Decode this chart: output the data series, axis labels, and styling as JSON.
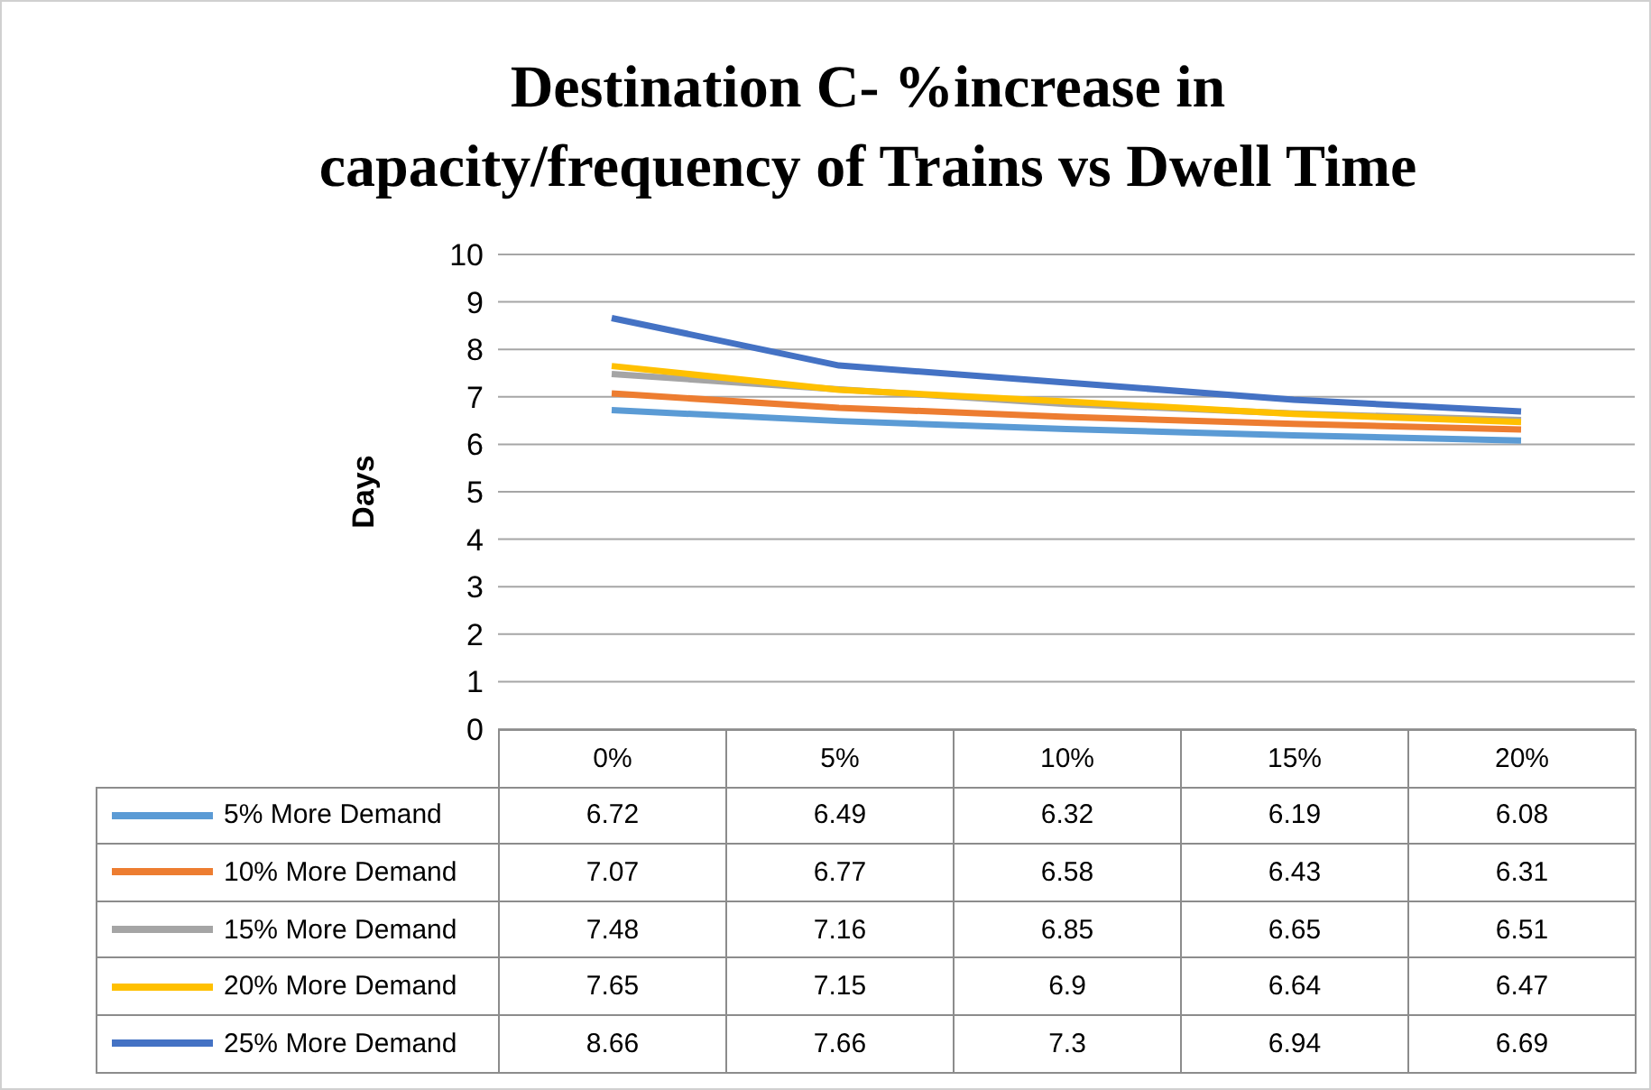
{
  "chart_data": {
    "type": "line",
    "title": "Destination C- %increase in capacity/frequency of Trains vs Dwell Time",
    "ylabel": "Days",
    "categories": [
      "0%",
      "5%",
      "10%",
      "15%",
      "20%"
    ],
    "series": [
      {
        "name": "5% More Demand",
        "color": "#5b9bd5",
        "values": [
          6.72,
          6.49,
          6.32,
          6.19,
          6.08
        ]
      },
      {
        "name": "10% More Demand",
        "color": "#ed7d31",
        "values": [
          7.07,
          6.77,
          6.58,
          6.43,
          6.31
        ]
      },
      {
        "name": "15% More Demand",
        "color": "#a5a5a5",
        "values": [
          7.48,
          7.16,
          6.85,
          6.65,
          6.51
        ]
      },
      {
        "name": "20% More Demand",
        "color": "#ffc000",
        "values": [
          7.65,
          7.15,
          6.9,
          6.64,
          6.47
        ]
      },
      {
        "name": "25% More Demand",
        "color": "#4472c4",
        "values": [
          8.66,
          7.66,
          7.3,
          6.94,
          6.69
        ]
      }
    ],
    "ylim": [
      0,
      10
    ],
    "yticks": [
      0,
      1,
      2,
      3,
      4,
      5,
      6,
      7,
      8,
      9,
      10
    ],
    "grid": "y",
    "legend": "bottom",
    "data_labels": true,
    "marker": "none",
    "line_style": "solid"
  }
}
